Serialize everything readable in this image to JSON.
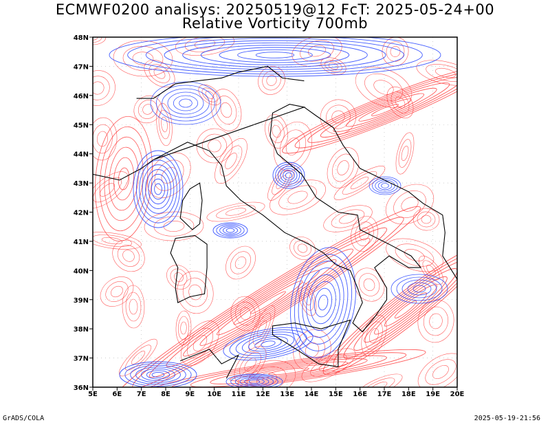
{
  "header": {
    "title_line1": "ECMWF0200 analisys: 20250519@12 FcT: 2025-05-24+00",
    "title_line2": "Relative Vorticity 700mb"
  },
  "map": {
    "extent": {
      "lon": [
        5,
        20
      ],
      "lat": [
        36,
        48
      ]
    },
    "lon_labels": [
      "5E",
      "6E",
      "7E",
      "8E",
      "9E",
      "10E",
      "11E",
      "12E",
      "13E",
      "14E",
      "15E",
      "16E",
      "17E",
      "18E",
      "19E",
      "20E"
    ],
    "lat_labels": [
      "36N",
      "37N",
      "38N",
      "39N",
      "40N",
      "41N",
      "42N",
      "43N",
      "44N",
      "45N",
      "46N",
      "47N",
      "48N"
    ],
    "colors": {
      "positive": "#ff3b3b",
      "negative": "#1f3dff",
      "coast": "#000000",
      "grid": "#b0b0b0"
    }
  },
  "footer": {
    "left": "GrADS/COLA",
    "right": "2025-05-19-21:56"
  }
}
